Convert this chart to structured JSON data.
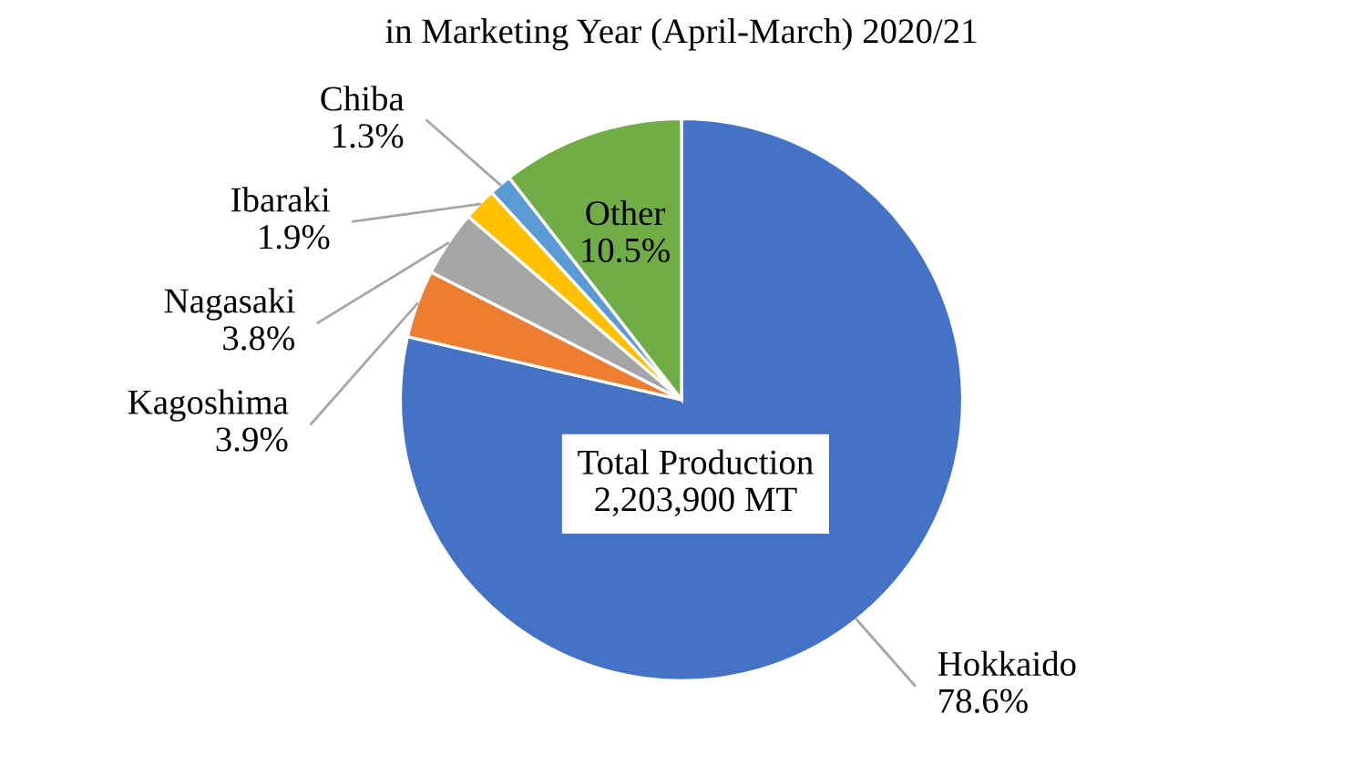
{
  "chart_data": {
    "type": "pie",
    "title": "in Marketing Year (April-March) 2020/21",
    "categories": [
      "Hokkaido",
      "Kagoshima",
      "Nagasaki",
      "Ibaraki",
      "Chiba",
      "Other"
    ],
    "values": [
      78.6,
      3.9,
      3.8,
      1.9,
      1.3,
      10.5
    ],
    "value_labels": [
      "78.6%",
      "3.9%",
      "3.8%",
      "1.9%",
      "1.3%",
      "10.5%"
    ],
    "colors": [
      "#4472c4",
      "#ed7d31",
      "#a5a5a5",
      "#ffc000",
      "#5b9bd5",
      "#70ad47"
    ],
    "annotations": [
      "Total Production\n2,203,900 MT"
    ]
  }
}
